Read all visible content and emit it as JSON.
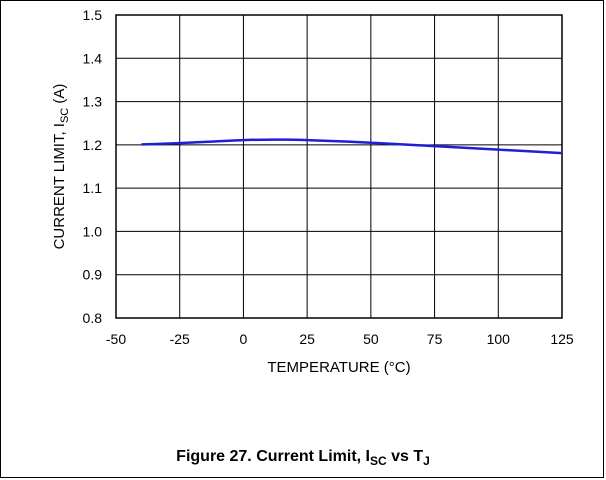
{
  "caption": {
    "prefix": "Figure 27. Current Limit, I",
    "sub1": "SC",
    "mid": " vs T",
    "sub2": "J"
  },
  "chart_data": {
    "type": "line",
    "xlabel": "TEMPERATURE (°C)",
    "ylabel_prefix": "CURRENT LIMIT, I",
    "ylabel_sub": "SC",
    "ylabel_suffix": " (A)",
    "xlim": [
      -50,
      125
    ],
    "ylim": [
      0.8,
      1.5
    ],
    "xticks": [
      -50,
      -25,
      0,
      25,
      50,
      75,
      100,
      125
    ],
    "yticks": [
      "0.8",
      "0.9",
      "1.0",
      "1.1",
      "1.2",
      "1.3",
      "1.4",
      "1.5"
    ],
    "grid": true,
    "series": [
      {
        "color": "#1f1fd6",
        "x": [
          -40,
          -25,
          0,
          15,
          25,
          50,
          75,
          100,
          125
        ],
        "y": [
          1.201,
          1.204,
          1.211,
          1.212,
          1.211,
          1.205,
          1.197,
          1.189,
          1.181
        ]
      }
    ]
  }
}
